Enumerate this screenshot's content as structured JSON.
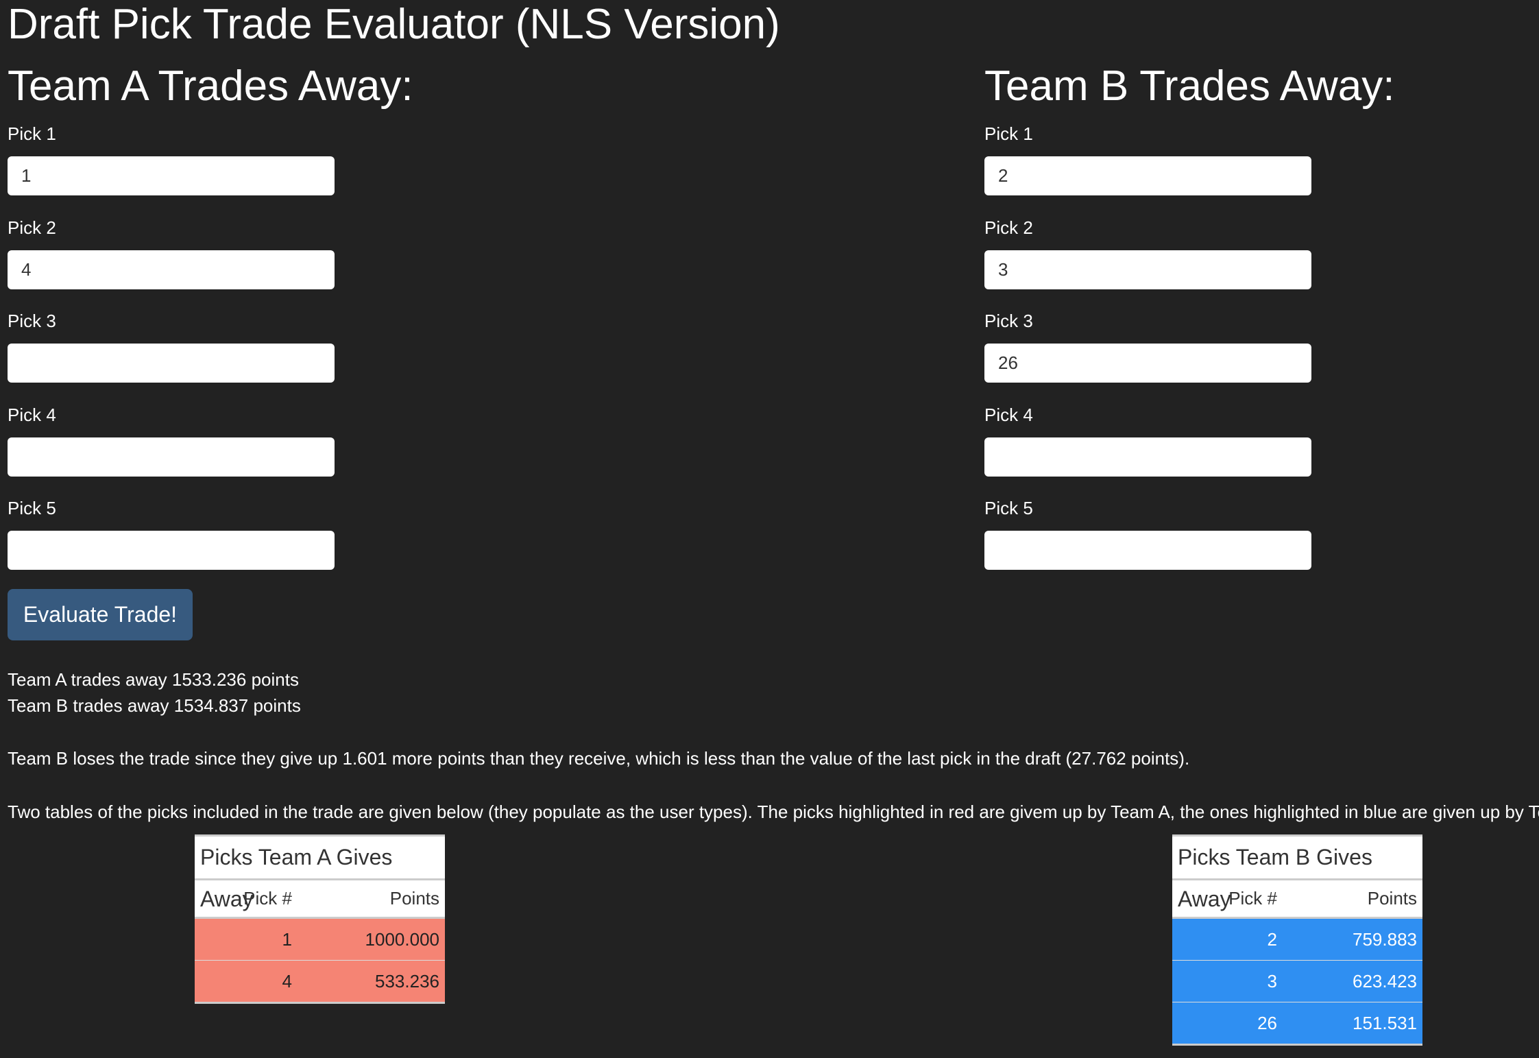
{
  "title": "Draft Pick Trade Evaluator (NLS Version)",
  "teams": [
    {
      "heading": "Team A Trades Away:",
      "picks": [
        {
          "label": "Pick 1",
          "value": "1"
        },
        {
          "label": "Pick 2",
          "value": "4"
        },
        {
          "label": "Pick 3"
        },
        {
          "label": "Pick 4"
        },
        {
          "label": "Pick 5"
        }
      ]
    },
    {
      "heading": "Team B Trades Away:",
      "picks": [
        {
          "label": "Pick 1",
          "value": "2"
        },
        {
          "label": "Pick 2",
          "value": "3"
        },
        {
          "label": "Pick 3",
          "value": "26"
        },
        {
          "label": "Pick 4"
        },
        {
          "label": "Pick 5"
        }
      ]
    }
  ],
  "button": "Evaluate Trade!",
  "results": [
    "Team A trades away 1533.236 points",
    "Team B trades away 1534.837 points"
  ],
  "verdict": "Team B loses the trade since they give up 1.601 more points than they receive, which is less than the value of the last pick in the draft (27.762 points).",
  "note": "Two tables of the picks included in the trade are given below (they populate as the user types). The picks highlighted in red are givem up by Team A, the ones highlighted in blue are given up by Team B.",
  "tables": [
    {
      "caption": "Picks Team A Gives Away",
      "columns": [
        "Pick #",
        "Points"
      ],
      "rows": [
        [
          "1",
          "1000.000"
        ],
        [
          "4",
          "533.236"
        ]
      ],
      "color": "#f58474",
      "text_color": "#222222"
    },
    {
      "caption": "Picks Team B Gives Away",
      "columns": [
        "Pick #",
        "Points"
      ],
      "rows": [
        [
          "2",
          "759.883"
        ],
        [
          "3",
          "623.423"
        ],
        [
          "26",
          "151.531"
        ]
      ],
      "color": "#2f8ff2",
      "text_color": "#ffffff"
    }
  ]
}
